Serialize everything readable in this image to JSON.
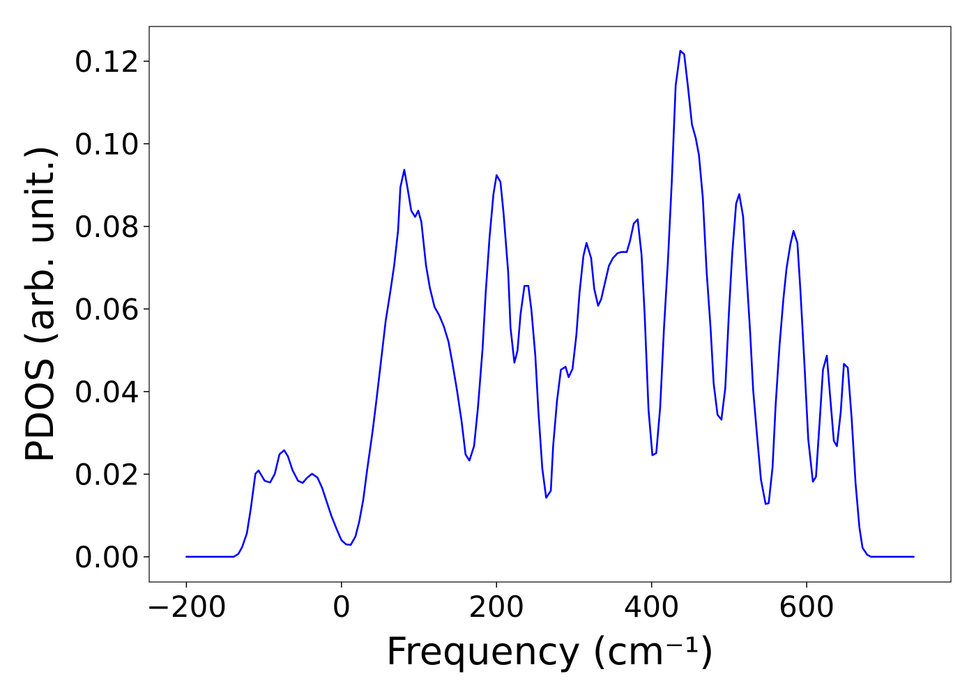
{
  "chart_data": {
    "type": "line",
    "x_label": "Frequency (cm⁻¹)",
    "y_label": "PDOS (arb. unit.)",
    "xlim": [
      -248,
      786
    ],
    "ylim": [
      -0.0061,
      0.1284
    ],
    "xticks": [
      {
        "value": -200,
        "label": "−200"
      },
      0,
      200,
      400,
      600
    ],
    "yticks": [
      {
        "value": 0,
        "label": "0.00"
      },
      0.02,
      0.04,
      0.06,
      0.08,
      {
        "value": 0.1,
        "label": "0.10"
      },
      0.12
    ],
    "grid": false,
    "series": [
      {
        "color": "#0000ff",
        "x": [
          -201,
          -139,
          -133,
          -128,
          -122,
          -117,
          -111,
          -107,
          -99,
          -92,
          -86,
          -80,
          -74,
          -69,
          -63,
          -56,
          -50,
          -44,
          -38,
          -31,
          -25,
          -19,
          -13,
          -6,
          0,
          6,
          12,
          18,
          23,
          28,
          33,
          40,
          45,
          51,
          57,
          63,
          68,
          73,
          76,
          81,
          85,
          90,
          95,
          99,
          103,
          109,
          114,
          120,
          126,
          132,
          138,
          143,
          149,
          155,
          160,
          165,
          171,
          176,
          182,
          186,
          191,
          196,
          200,
          205,
          209,
          215,
          218,
          223,
          227,
          231,
          236,
          241,
          245,
          250,
          254,
          259,
          264,
          270,
          273,
          278,
          283,
          289,
          293,
          298,
          303,
          307,
          312,
          316,
          322,
          326,
          331,
          335,
          341,
          345,
          350,
          356,
          361,
          368,
          372,
          377,
          382,
          387,
          391,
          396,
          401,
          406,
          411,
          416,
          421,
          426,
          431,
          437,
          442,
          447,
          452,
          457,
          461,
          466,
          471,
          476,
          480,
          485,
          490,
          495,
          500,
          504,
          509,
          513,
          518,
          522,
          527,
          531,
          536,
          541,
          547,
          551,
          556,
          560,
          565,
          570,
          574,
          579,
          583,
          588,
          592,
          597,
          602,
          608,
          612,
          617,
          621,
          626,
          630,
          635,
          639,
          644,
          648,
          653,
          658,
          663,
          668,
          672,
          678,
          683,
          739
        ],
        "values": [
          0,
          0,
          0.0007,
          0.0024,
          0.0057,
          0.0116,
          0.0201,
          0.0209,
          0.0184,
          0.018,
          0.0201,
          0.0248,
          0.0258,
          0.0243,
          0.0209,
          0.0184,
          0.0179,
          0.0192,
          0.0201,
          0.0192,
          0.0167,
          0.0133,
          0.0099,
          0.0066,
          0.004,
          0.003,
          0.0029,
          0.0049,
          0.0086,
          0.0137,
          0.0209,
          0.0302,
          0.0378,
          0.0474,
          0.0571,
          0.0642,
          0.0706,
          0.079,
          0.0895,
          0.0937,
          0.0895,
          0.0838,
          0.0823,
          0.0838,
          0.0811,
          0.0706,
          0.0651,
          0.0605,
          0.0585,
          0.0558,
          0.0521,
          0.047,
          0.0403,
          0.0327,
          0.0248,
          0.0233,
          0.0268,
          0.0361,
          0.0504,
          0.0639,
          0.0774,
          0.0878,
          0.0924,
          0.0908,
          0.0833,
          0.0689,
          0.0555,
          0.047,
          0.0499,
          0.0588,
          0.0656,
          0.0656,
          0.0597,
          0.0487,
          0.0352,
          0.0214,
          0.0143,
          0.016,
          0.0268,
          0.0378,
          0.0453,
          0.046,
          0.0435,
          0.0455,
          0.0538,
          0.0639,
          0.0728,
          0.076,
          0.0723,
          0.0649,
          0.0608,
          0.0624,
          0.0673,
          0.0705,
          0.0723,
          0.0735,
          0.0738,
          0.0738,
          0.0764,
          0.0807,
          0.0817,
          0.0732,
          0.0588,
          0.0356,
          0.0246,
          0.0251,
          0.0361,
          0.0555,
          0.0715,
          0.0908,
          0.1141,
          0.1225,
          0.1217,
          0.1136,
          0.1047,
          0.1013,
          0.0973,
          0.087,
          0.0689,
          0.0555,
          0.042,
          0.0344,
          0.0332,
          0.0408,
          0.0602,
          0.0735,
          0.0855,
          0.0878,
          0.0824,
          0.0698,
          0.0546,
          0.0403,
          0.0293,
          0.0187,
          0.0128,
          0.013,
          0.0217,
          0.0369,
          0.0512,
          0.0625,
          0.0698,
          0.0757,
          0.0789,
          0.076,
          0.0642,
          0.047,
          0.0285,
          0.0182,
          0.0194,
          0.0335,
          0.0453,
          0.0487,
          0.0394,
          0.0281,
          0.0268,
          0.0352,
          0.0467,
          0.0458,
          0.0335,
          0.0179,
          0.0071,
          0.0022,
          0.0005,
          0,
          0
        ]
      }
    ]
  }
}
